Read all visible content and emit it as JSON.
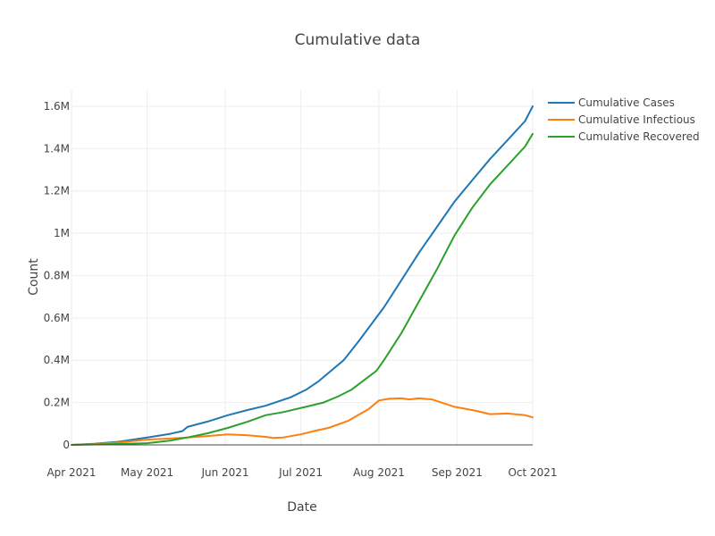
{
  "chart_data": {
    "type": "line",
    "title": "Cumulative data",
    "xlabel": "Date",
    "ylabel": "Count",
    "x_range": [
      "2021-04-01",
      "2021-10-01"
    ],
    "y_range": [
      0,
      1680000
    ],
    "grid": true,
    "legend_position": "top-right",
    "x_ticks": [
      {
        "date": "2021-04-01",
        "label": "Apr 2021"
      },
      {
        "date": "2021-05-01",
        "label": "May 2021"
      },
      {
        "date": "2021-06-01",
        "label": "Jun 2021"
      },
      {
        "date": "2021-07-01",
        "label": "Jul 2021"
      },
      {
        "date": "2021-08-01",
        "label": "Aug 2021"
      },
      {
        "date": "2021-09-01",
        "label": "Sep 2021"
      },
      {
        "date": "2021-10-01",
        "label": "Oct 2021"
      }
    ],
    "y_ticks": [
      {
        "value": 0,
        "label": "0"
      },
      {
        "value": 200000,
        "label": "0.2M"
      },
      {
        "value": 400000,
        "label": "0.4M"
      },
      {
        "value": 600000,
        "label": "0.6M"
      },
      {
        "value": 800000,
        "label": "0.8M"
      },
      {
        "value": 1000000,
        "label": "1M"
      },
      {
        "value": 1200000,
        "label": "1.2M"
      },
      {
        "value": 1400000,
        "label": "1.4M"
      },
      {
        "value": 1600000,
        "label": "1.6M"
      }
    ],
    "series": [
      {
        "name": "Cumulative Cases",
        "color": "#1f77b4",
        "points": [
          [
            "2021-04-01",
            0
          ],
          [
            "2021-04-10",
            5000
          ],
          [
            "2021-04-20",
            15000
          ],
          [
            "2021-05-01",
            35000
          ],
          [
            "2021-05-10",
            52000
          ],
          [
            "2021-05-15",
            65000
          ],
          [
            "2021-05-17",
            85000
          ],
          [
            "2021-05-25",
            110000
          ],
          [
            "2021-06-02",
            140000
          ],
          [
            "2021-06-10",
            165000
          ],
          [
            "2021-06-17",
            185000
          ],
          [
            "2021-06-27",
            225000
          ],
          [
            "2021-07-03",
            260000
          ],
          [
            "2021-07-08",
            300000
          ],
          [
            "2021-07-18",
            400000
          ],
          [
            "2021-07-24",
            490000
          ],
          [
            "2021-08-03",
            650000
          ],
          [
            "2021-08-10",
            780000
          ],
          [
            "2021-08-17",
            910000
          ],
          [
            "2021-08-24",
            1030000
          ],
          [
            "2021-08-31",
            1150000
          ],
          [
            "2021-09-07",
            1250000
          ],
          [
            "2021-09-14",
            1350000
          ],
          [
            "2021-09-21",
            1440000
          ],
          [
            "2021-09-28",
            1530000
          ],
          [
            "2021-10-01",
            1600000
          ]
        ]
      },
      {
        "name": "Cumulative Infectious",
        "color": "#ff7f0e",
        "points": [
          [
            "2021-04-01",
            0
          ],
          [
            "2021-04-10",
            4000
          ],
          [
            "2021-04-20",
            12000
          ],
          [
            "2021-05-01",
            25000
          ],
          [
            "2021-05-10",
            30000
          ],
          [
            "2021-05-17",
            35000
          ],
          [
            "2021-05-25",
            42000
          ],
          [
            "2021-06-02",
            50000
          ],
          [
            "2021-06-10",
            45000
          ],
          [
            "2021-06-17",
            38000
          ],
          [
            "2021-06-20",
            33000
          ],
          [
            "2021-06-24",
            35000
          ],
          [
            "2021-07-01",
            50000
          ],
          [
            "2021-07-08",
            70000
          ],
          [
            "2021-07-12",
            80000
          ],
          [
            "2021-07-20",
            115000
          ],
          [
            "2021-07-28",
            170000
          ],
          [
            "2021-08-01",
            210000
          ],
          [
            "2021-08-05",
            218000
          ],
          [
            "2021-08-10",
            220000
          ],
          [
            "2021-08-13",
            215000
          ],
          [
            "2021-08-17",
            220000
          ],
          [
            "2021-08-22",
            215000
          ],
          [
            "2021-08-31",
            180000
          ],
          [
            "2021-09-09",
            160000
          ],
          [
            "2021-09-14",
            145000
          ],
          [
            "2021-09-21",
            148000
          ],
          [
            "2021-09-28",
            140000
          ],
          [
            "2021-10-01",
            130000
          ]
        ]
      },
      {
        "name": "Cumulative Recovered",
        "color": "#2ca02c",
        "points": [
          [
            "2021-04-01",
            0
          ],
          [
            "2021-04-15",
            3000
          ],
          [
            "2021-05-01",
            8000
          ],
          [
            "2021-05-10",
            20000
          ],
          [
            "2021-05-17",
            35000
          ],
          [
            "2021-05-25",
            55000
          ],
          [
            "2021-06-02",
            80000
          ],
          [
            "2021-06-10",
            110000
          ],
          [
            "2021-06-17",
            140000
          ],
          [
            "2021-06-24",
            155000
          ],
          [
            "2021-07-03",
            180000
          ],
          [
            "2021-07-10",
            200000
          ],
          [
            "2021-07-16",
            230000
          ],
          [
            "2021-07-21",
            260000
          ],
          [
            "2021-07-31",
            350000
          ],
          [
            "2021-08-03",
            400000
          ],
          [
            "2021-08-10",
            530000
          ],
          [
            "2021-08-17",
            680000
          ],
          [
            "2021-08-24",
            830000
          ],
          [
            "2021-08-31",
            990000
          ],
          [
            "2021-09-07",
            1120000
          ],
          [
            "2021-09-14",
            1230000
          ],
          [
            "2021-09-21",
            1320000
          ],
          [
            "2021-09-28",
            1410000
          ],
          [
            "2021-10-01",
            1470000
          ]
        ]
      }
    ]
  }
}
